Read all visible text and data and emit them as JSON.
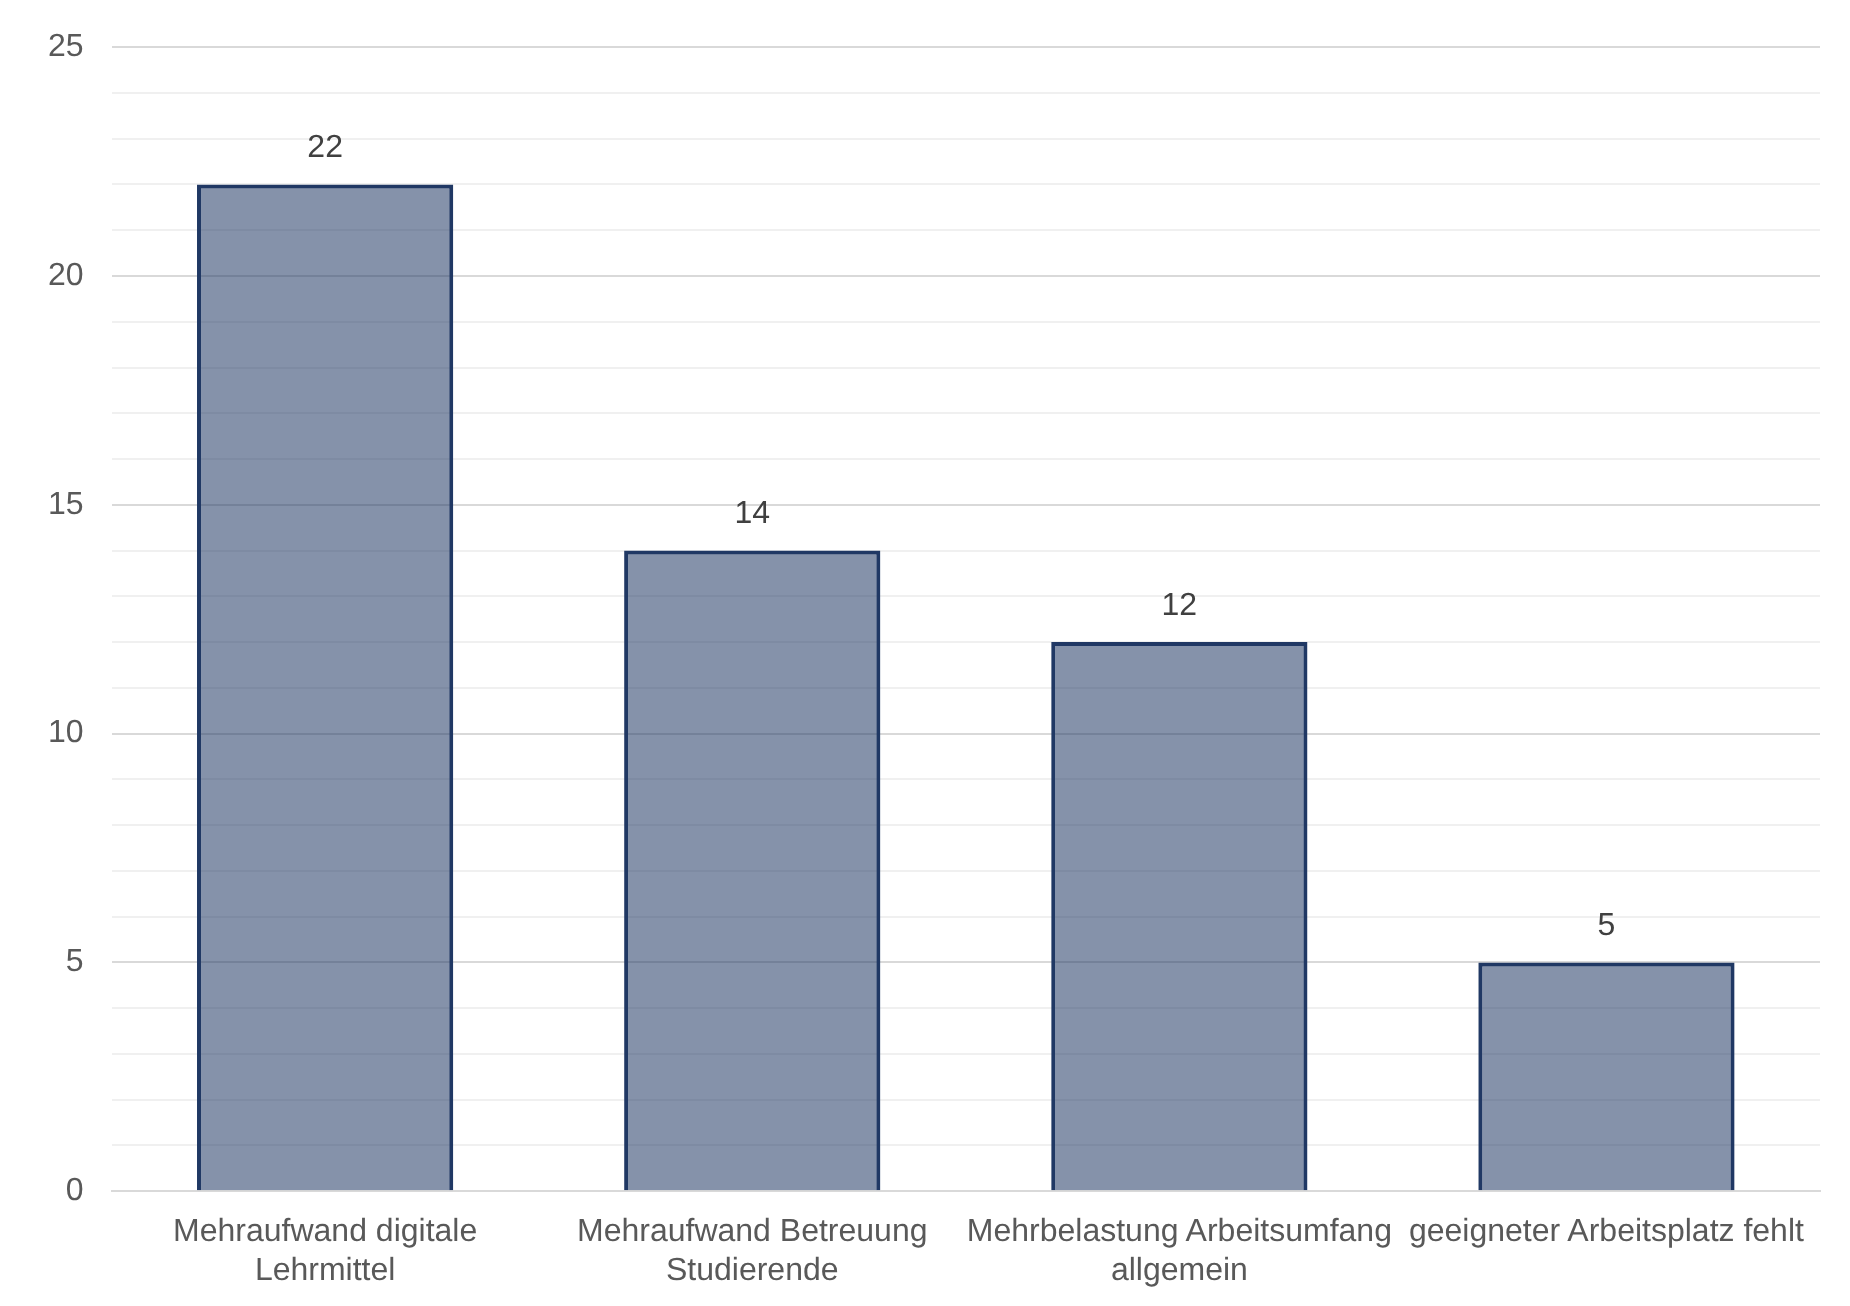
{
  "chart_data": {
    "type": "bar",
    "categories": [
      "Mehraufwand digitale Lehrmittel",
      "Mehraufwand Betreuung Studierende",
      "Mehrbelastung Arbeitsumfang allgemein",
      "geeigneter Arbeitsplatz fehlt"
    ],
    "values": [
      22,
      14,
      12,
      5
    ],
    "color": "#203864",
    "ylim": [
      0,
      25
    ],
    "yticks": [
      0,
      {
        "value": 1,
        "label": null
      },
      {
        "value": 2,
        "label": null
      },
      {
        "value": 3,
        "label": null
      },
      {
        "value": 4,
        "label": null
      },
      5,
      {
        "value": 6,
        "label": null
      },
      {
        "value": 7,
        "label": null
      },
      {
        "value": 8,
        "label": null
      },
      {
        "value": 9,
        "label": null
      },
      10,
      {
        "value": 11,
        "label": null
      },
      {
        "value": 12,
        "label": null
      },
      {
        "value": 13,
        "label": null
      },
      {
        "value": 14,
        "label": null
      },
      15,
      {
        "value": 16,
        "label": null
      },
      {
        "value": 17,
        "label": null
      },
      {
        "value": 18,
        "label": null
      },
      {
        "value": 19,
        "label": null
      },
      20,
      {
        "value": 21,
        "label": null
      },
      {
        "value": 22,
        "label": null
      },
      {
        "value": 23,
        "label": null
      },
      {
        "value": 24,
        "label": null
      },
      25
    ],
    "grid": "y",
    "data_labels": true
  }
}
